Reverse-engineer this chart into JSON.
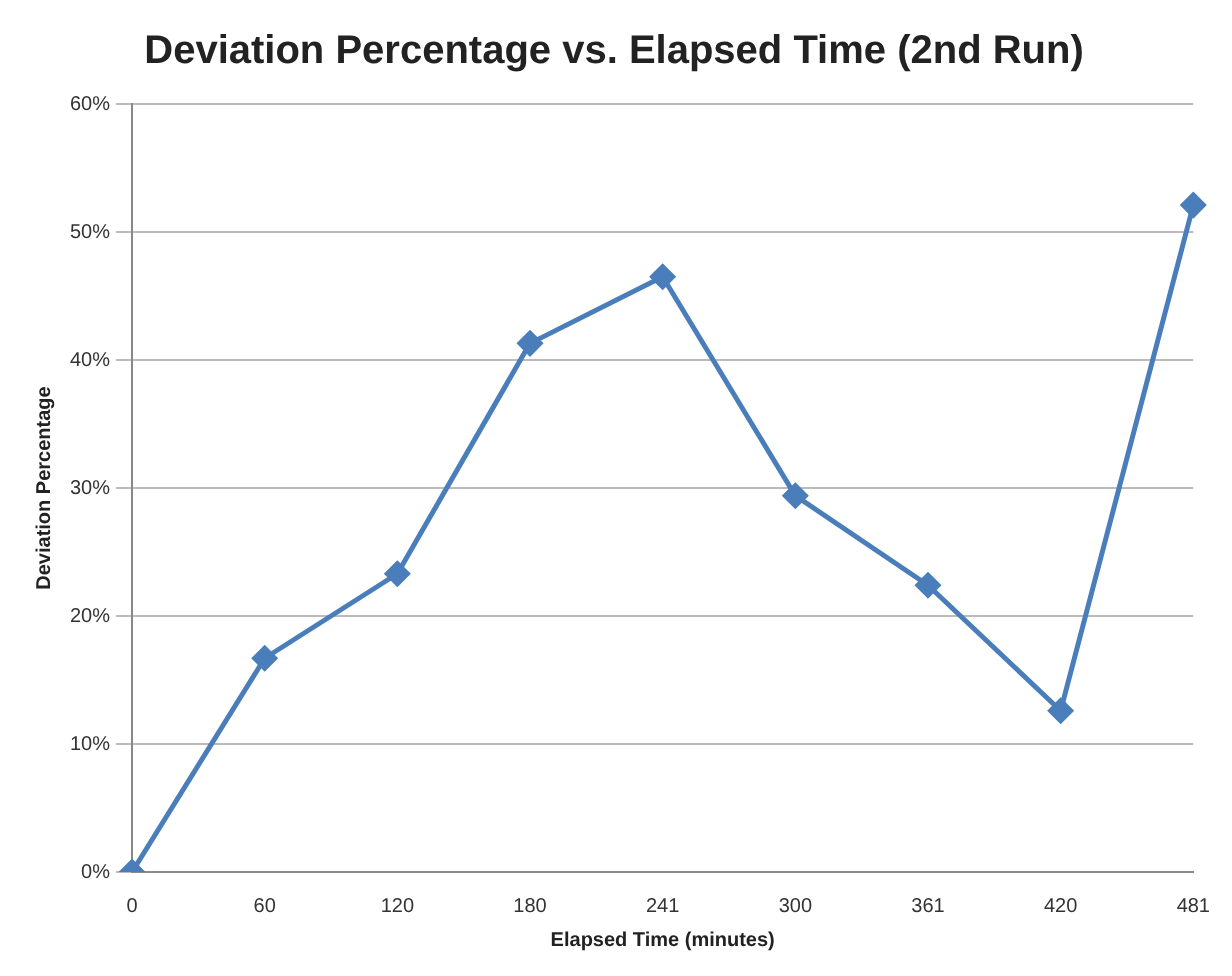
{
  "chart_data": {
    "type": "line",
    "title": "Deviation Percentage vs. Elapsed Time (2nd Run)",
    "xlabel": "Elapsed Time (minutes)",
    "ylabel": "Deviation Percentage",
    "categories": [
      "0",
      "60",
      "120",
      "180",
      "241",
      "300",
      "361",
      "420",
      "481"
    ],
    "series": [
      {
        "color": "#4a7ebb",
        "values": [
          0,
          16.7,
          23.3,
          41.3,
          46.5,
          29.4,
          22.4,
          12.6,
          52.1
        ]
      }
    ],
    "ylim": [
      0,
      60
    ],
    "yticks": [
      {
        "value": 0,
        "label": "0%"
      },
      {
        "value": 10,
        "label": "10%"
      },
      {
        "value": 20,
        "label": "20%"
      },
      {
        "value": 30,
        "label": "30%"
      },
      {
        "value": 40,
        "label": "40%"
      },
      {
        "value": 50,
        "label": "50%"
      },
      {
        "value": 60,
        "label": "60%"
      }
    ],
    "grid": "y",
    "legend": false,
    "marker": "diamond",
    "line_style": "solid"
  }
}
